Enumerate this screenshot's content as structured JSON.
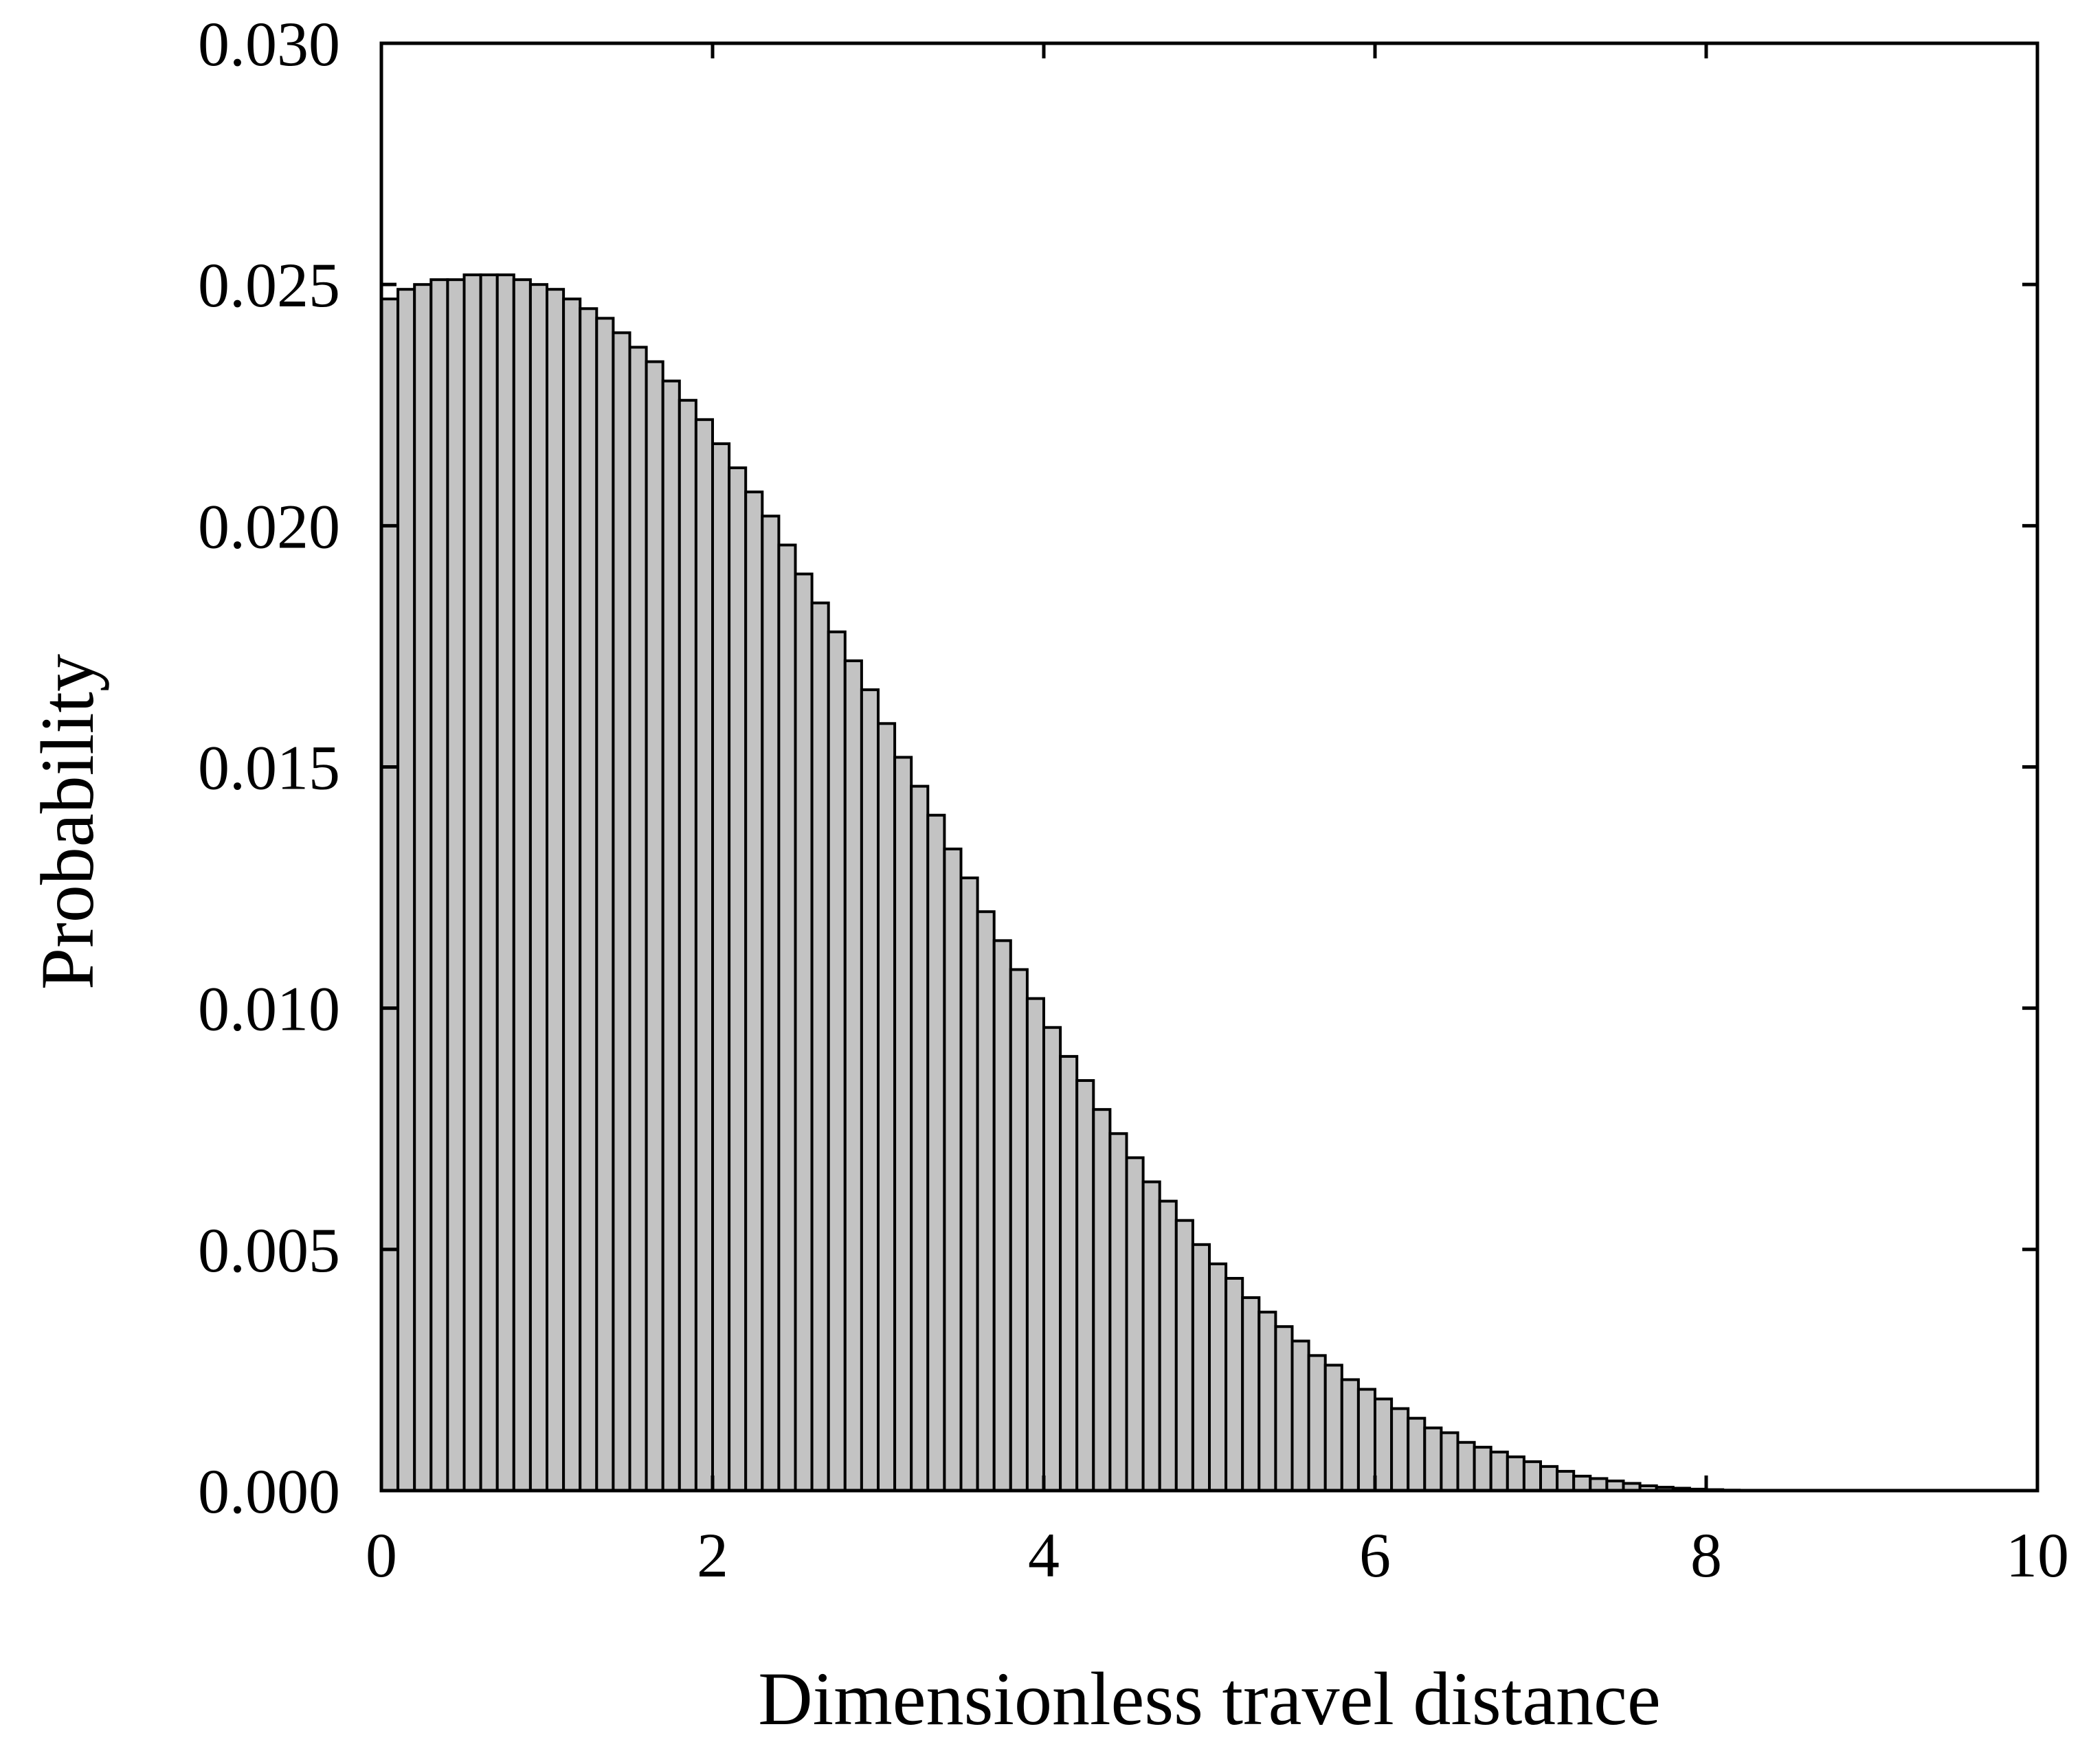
{
  "chart_data": {
    "type": "bar",
    "title": "",
    "xlabel": "Dimensionless travel distance",
    "ylabel": "Probability",
    "xlim": [
      0,
      10
    ],
    "ylim": [
      0,
      0.03
    ],
    "xticks": [
      "0",
      "2",
      "4",
      "6",
      "8",
      "10"
    ],
    "yticks": [
      "0.000",
      "0.005",
      "0.010",
      "0.015",
      "0.020",
      "0.025",
      "0.030"
    ],
    "grid": false,
    "legend": "none",
    "bar_fill": "#c3c3c3",
    "bar_edge": "#000000",
    "bin_width": 0.1,
    "x_start": 0,
    "values": [
      0.0247,
      0.0249,
      0.025,
      0.0251,
      0.0251,
      0.0252,
      0.0252,
      0.0252,
      0.0251,
      0.025,
      0.0249,
      0.0247,
      0.0245,
      0.0243,
      0.024,
      0.0237,
      0.0234,
      0.023,
      0.0226,
      0.0222,
      0.0217,
      0.0212,
      0.0207,
      0.0202,
      0.0196,
      0.019,
      0.0184,
      0.0178,
      0.0172,
      0.0166,
      0.0159,
      0.0152,
      0.0146,
      0.014,
      0.0133,
      0.0127,
      0.012,
      0.0114,
      0.0108,
      0.0102,
      0.0096,
      0.009,
      0.0085,
      0.0079,
      0.0074,
      0.0069,
      0.0064,
      0.006,
      0.0056,
      0.0051,
      0.0047,
      0.0044,
      0.004,
      0.0037,
      0.0034,
      0.0031,
      0.0028,
      0.0026,
      0.0023,
      0.0021,
      0.0019,
      0.0017,
      0.0015,
      0.0013,
      0.0012,
      0.001,
      0.0009,
      0.0008,
      0.0007,
      0.0006,
      0.0005,
      0.0004,
      0.0003,
      0.00025,
      0.0002,
      0.00015,
      0.0001,
      7e-05,
      5e-05,
      3e-05,
      2e-05,
      1e-05,
      5e-06,
      2e-06,
      1e-06,
      5e-07,
      2e-07,
      1e-07,
      5e-08,
      0.0
    ]
  }
}
